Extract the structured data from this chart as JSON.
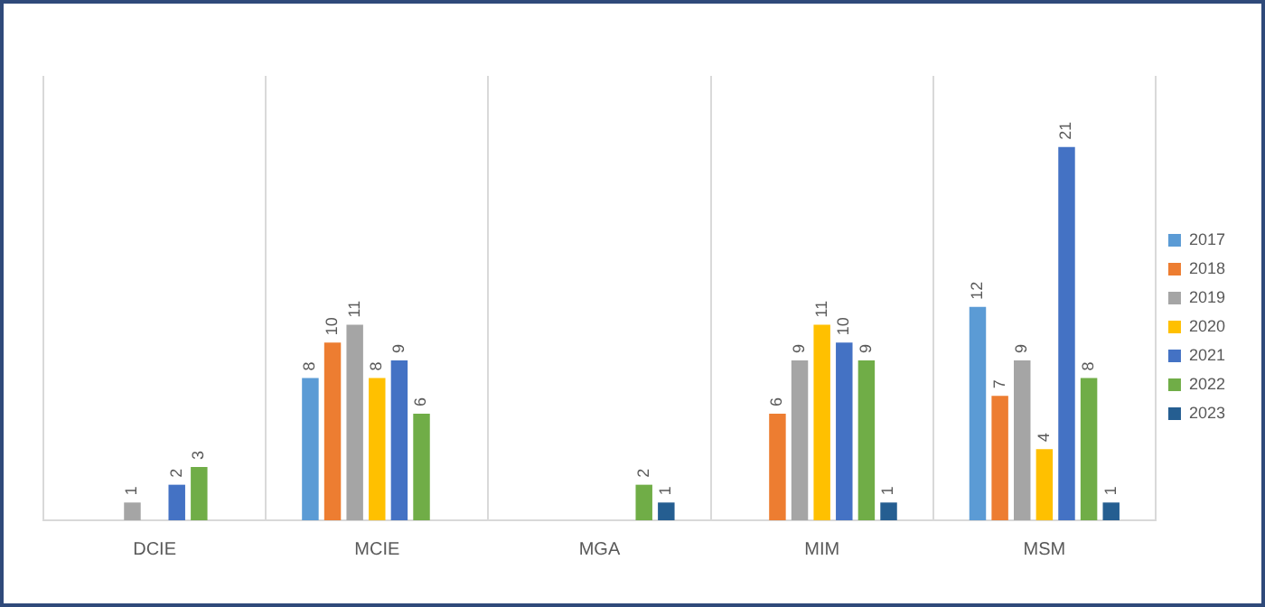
{
  "chart_data": {
    "type": "bar",
    "categories": [
      "DCIE",
      "MCIE",
      "MGA",
      "MIM",
      "MSM"
    ],
    "series": [
      {
        "name": "2017",
        "color": "#5b9bd5",
        "values": [
          null,
          8,
          null,
          null,
          12
        ]
      },
      {
        "name": "2018",
        "color": "#ed7d31",
        "values": [
          null,
          10,
          null,
          6,
          7
        ]
      },
      {
        "name": "2019",
        "color": "#a5a5a5",
        "values": [
          1,
          11,
          null,
          9,
          9
        ]
      },
      {
        "name": "2020",
        "color": "#ffc000",
        "values": [
          null,
          8,
          null,
          11,
          4
        ]
      },
      {
        "name": "2021",
        "color": "#4472c4",
        "values": [
          2,
          9,
          null,
          10,
          21
        ]
      },
      {
        "name": "2022",
        "color": "#70ad47",
        "values": [
          3,
          6,
          2,
          9,
          8
        ]
      },
      {
        "name": "2023",
        "color": "#255e91",
        "values": [
          null,
          null,
          1,
          1,
          1
        ]
      }
    ],
    "ylim": [
      0,
      25
    ],
    "tick_labels": "x",
    "grid": "x",
    "legend": "right",
    "data_labels": true
  }
}
